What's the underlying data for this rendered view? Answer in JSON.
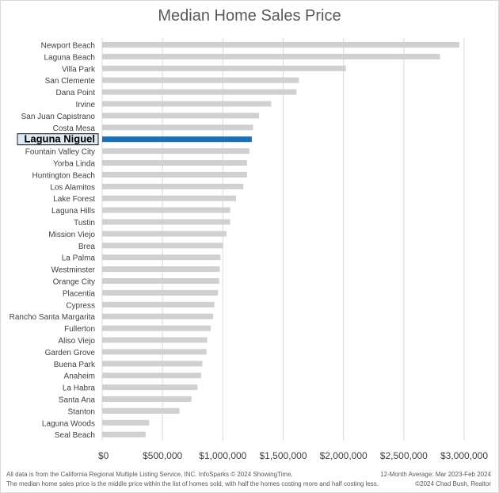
{
  "chart_data": {
    "type": "bar",
    "orientation": "horizontal",
    "title": "Median Home Sales Price",
    "xlabel": "",
    "ylabel": "",
    "xlim": [
      0,
      3000000
    ],
    "x_ticks": [
      0,
      500000,
      1000000,
      1500000,
      2000000,
      2500000,
      3000000
    ],
    "x_tick_labels": [
      "$0",
      "$500,000",
      "$1,000,000",
      "$1,500,000",
      "$2,000,000",
      "$2,500,000",
      "$3,000,000"
    ],
    "grid": "vertical",
    "highlighted_category": "Laguna Niguel",
    "colors": {
      "bar": "#d0d0d0",
      "highlight": "#1f6fb2",
      "grid": "#d9d9d9"
    },
    "categories": [
      "Newport Beach",
      "Laguna Beach",
      "Villa Park",
      "San Clemente",
      "Dana Point",
      "Irvine",
      "San Juan Capistrano",
      "Costa Mesa",
      "Laguna Niguel",
      "Fountain Valley City",
      "Yorba Linda",
      "Huntington Beach",
      "Los Alamitos",
      "Lake Forest",
      "Laguna Hills",
      "Tustin",
      "Mission Viejo",
      "Brea",
      "La Palma",
      "Westminster",
      "Orange City",
      "Placentia",
      "Cypress",
      "Rancho Santa Margarita",
      "Fullerton",
      "Aliso Viejo",
      "Garden Grove",
      "Buena Park",
      "Anaheim",
      "La Habra",
      "Santa Ana",
      "Stanton",
      "Laguna Woods",
      "Seal Beach"
    ],
    "values": [
      2960000,
      2800000,
      2020000,
      1630000,
      1610000,
      1400000,
      1300000,
      1250000,
      1240000,
      1220000,
      1200000,
      1200000,
      1170000,
      1110000,
      1060000,
      1060000,
      1030000,
      1000000,
      980000,
      975000,
      970000,
      960000,
      930000,
      920000,
      900000,
      870000,
      865000,
      830000,
      820000,
      790000,
      740000,
      640000,
      390000,
      360000
    ]
  },
  "footer": {
    "left_line1": "All data is from the California Regional Multiple Listing Service, INC. InfoSparks © 2024 ShowingTime.",
    "left_line2": "The median home sales price is the middle price within the list of homes sold, with half the homes costing more and half costing less.",
    "right_line1": "12-Month Average: Mar 2023-Feb 2024",
    "right_line2": "©2024 Chad Bush, Realtor"
  }
}
